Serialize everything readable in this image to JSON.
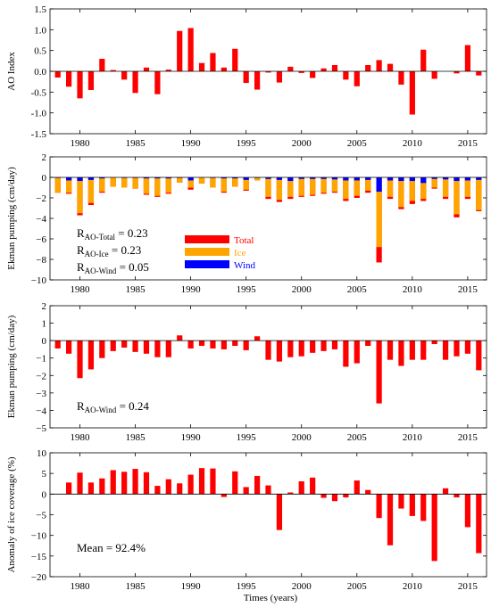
{
  "colors": {
    "total": "#ff0000",
    "ice": "#ffa500",
    "wind": "#0000ff"
  },
  "x_axis": {
    "label": "Times (years)",
    "ticks": [
      1980,
      1985,
      1990,
      1995,
      2000,
      2005,
      2010,
      2015
    ],
    "range": [
      1977.3,
      2016.7
    ]
  },
  "legend": {
    "total": "Total",
    "ice": "Ice",
    "wind": "Wind"
  },
  "annotations": {
    "r_total_main": "R",
    "r_total_sub": "AO-Total",
    "r_total_val": " = 0.23",
    "r_ice_main": "R",
    "r_ice_sub": "AO-Ice",
    "r_ice_val": " = 0.23",
    "r_wind_main": "R",
    "r_wind_sub": "AO-Wind",
    "r_wind_val": " = 0.05",
    "r_wind2_main": "R",
    "r_wind2_sub": "AO-Wind",
    "r_wind2_val": " = 0.24",
    "mean": "Mean = 92.4%"
  },
  "chart_data": [
    {
      "type": "bar",
      "ylabel": "AO Index",
      "ylim": [
        -1.5,
        1.5
      ],
      "yticks": [
        -1.5,
        -1.0,
        -0.5,
        0.0,
        0.5,
        1.0,
        1.5
      ],
      "ytick_labels": [
        "-1.5",
        "-1.0",
        "-0.5",
        "0.0",
        "0.5",
        "1.0",
        "1.5"
      ],
      "x": [
        1978,
        1979,
        1980,
        1981,
        1982,
        1983,
        1984,
        1985,
        1986,
        1987,
        1988,
        1989,
        1990,
        1991,
        1992,
        1993,
        1994,
        1995,
        1996,
        1997,
        1998,
        1999,
        2000,
        2001,
        2002,
        2003,
        2004,
        2005,
        2006,
        2007,
        2008,
        2009,
        2010,
        2011,
        2012,
        2013,
        2014,
        2015,
        2016
      ],
      "series": [
        {
          "color_key": "total",
          "values": [
            -0.15,
            -0.37,
            -0.65,
            -0.45,
            0.3,
            0.03,
            -0.2,
            -0.52,
            0.09,
            -0.55,
            0.04,
            0.97,
            1.04,
            0.2,
            0.44,
            0.09,
            0.54,
            -0.28,
            -0.44,
            -0.03,
            -0.27,
            0.11,
            -0.04,
            -0.16,
            0.07,
            0.15,
            -0.2,
            -0.36,
            0.15,
            0.27,
            0.18,
            -0.32,
            -1.04,
            0.52,
            -0.18,
            0.0,
            -0.05,
            0.63,
            -0.1
          ]
        }
      ]
    },
    {
      "type": "bar",
      "ylabel": "Ekman pumping (cm/day)",
      "ylim": [
        -10,
        2
      ],
      "yticks": [
        -10,
        -8,
        -6,
        -4,
        -2,
        0,
        2
      ],
      "ytick_labels": [
        "−10",
        "−8",
        "−6",
        "−4",
        "−2",
        "0",
        "2"
      ],
      "x": [
        1978,
        1979,
        1980,
        1981,
        1982,
        1983,
        1984,
        1985,
        1986,
        1987,
        1988,
        1989,
        1990,
        1991,
        1992,
        1993,
        1994,
        1995,
        1996,
        1997,
        1998,
        1999,
        2000,
        2001,
        2002,
        2003,
        2004,
        2005,
        2006,
        2007,
        2008,
        2009,
        2010,
        2011,
        2012,
        2013,
        2014,
        2015,
        2016
      ],
      "series": [
        {
          "color_key": "total",
          "values": [
            -1.5,
            -1.6,
            -3.7,
            -2.7,
            -1.5,
            -0.9,
            -1.0,
            -1.1,
            -1.7,
            -1.9,
            -1.6,
            -0.5,
            -1.2,
            -0.6,
            -1.0,
            -1.5,
            -0.9,
            -1.3,
            -0.3,
            -2.1,
            -2.4,
            -2.1,
            -1.9,
            -1.8,
            -1.6,
            -1.5,
            -2.3,
            -2.0,
            -1.5,
            -8.3,
            -2.1,
            -3.1,
            -2.6,
            -2.3,
            -1.1,
            -2.1,
            -3.9,
            -2.1,
            -3.3
          ]
        },
        {
          "color_key": "ice",
          "values": [
            -1.5,
            -1.5,
            -3.5,
            -2.5,
            -1.4,
            -0.9,
            -1.0,
            -1.1,
            -1.6,
            -1.8,
            -1.5,
            -0.5,
            -1.0,
            -0.6,
            -1.0,
            -1.4,
            -0.9,
            -1.2,
            -0.3,
            -1.9,
            -2.2,
            -1.9,
            -1.8,
            -1.7,
            -1.5,
            -1.4,
            -2.1,
            -1.8,
            -1.3,
            -6.8,
            -1.9,
            -2.9,
            -2.3,
            -2.1,
            -1.0,
            -1.9,
            -3.6,
            -1.9,
            -3.2
          ]
        },
        {
          "color_key": "wind",
          "values": [
            -0.05,
            -0.3,
            -0.35,
            -0.25,
            -0.1,
            0,
            -0.05,
            -0.05,
            -0.1,
            -0.1,
            -0.1,
            -0.05,
            -0.3,
            0,
            -0.05,
            -0.1,
            -0.1,
            -0.25,
            -0.05,
            -0.15,
            -0.25,
            -0.35,
            -0.15,
            -0.15,
            -0.15,
            -0.2,
            -0.3,
            -0.3,
            -0.25,
            -1.4,
            -0.3,
            -0.35,
            -0.35,
            -0.55,
            -0.15,
            -0.2,
            -0.35,
            -0.3,
            -0.25
          ]
        }
      ]
    },
    {
      "type": "bar",
      "ylabel": "Ekman pumping (cm/day)",
      "ylim": [
        -5,
        2
      ],
      "yticks": [
        -5,
        -4,
        -3,
        -2,
        -1,
        0,
        1,
        2
      ],
      "ytick_labels": [
        "−5",
        "−4",
        "−3",
        "−2",
        "−1",
        "0",
        "1",
        "2"
      ],
      "x": [
        1978,
        1979,
        1980,
        1981,
        1982,
        1983,
        1984,
        1985,
        1986,
        1987,
        1988,
        1989,
        1990,
        1991,
        1992,
        1993,
        1994,
        1995,
        1996,
        1997,
        1998,
        1999,
        2000,
        2001,
        2002,
        2003,
        2004,
        2005,
        2006,
        2007,
        2008,
        2009,
        2010,
        2011,
        2012,
        2013,
        2014,
        2015,
        2016
      ],
      "series": [
        {
          "color_key": "total",
          "values": [
            -0.45,
            -0.75,
            -2.15,
            -1.65,
            -1.0,
            -0.6,
            -0.4,
            -0.65,
            -0.75,
            -0.95,
            -0.95,
            0.3,
            -0.45,
            -0.3,
            -0.45,
            -0.5,
            -0.3,
            -0.55,
            0.25,
            -1.1,
            -1.2,
            -0.95,
            -0.9,
            -0.7,
            -0.6,
            -0.5,
            -1.5,
            -1.3,
            -0.3,
            -3.6,
            -1.1,
            -1.45,
            -1.1,
            -1.1,
            -0.2,
            -1.1,
            -0.9,
            -0.75,
            -1.7
          ]
        }
      ]
    },
    {
      "type": "bar",
      "ylabel": "Anomaly of ice coverage (%)",
      "ylim": [
        -20,
        10
      ],
      "yticks": [
        -20,
        -15,
        -10,
        -5,
        0,
        5,
        10
      ],
      "ytick_labels": [
        "−20",
        "−15",
        "−10",
        "−5",
        "0",
        "5",
        "10"
      ],
      "x": [
        1978,
        1979,
        1980,
        1981,
        1982,
        1983,
        1984,
        1985,
        1986,
        1987,
        1988,
        1989,
        1990,
        1991,
        1992,
        1993,
        1994,
        1995,
        1996,
        1997,
        1998,
        1999,
        2000,
        2001,
        2002,
        2003,
        2004,
        2005,
        2006,
        2007,
        2008,
        2009,
        2010,
        2011,
        2012,
        2013,
        2014,
        2015,
        2016
      ],
      "series": [
        {
          "color_key": "total",
          "values": [
            0,
            2.8,
            5.2,
            2.8,
            3.8,
            5.8,
            5.4,
            6.1,
            5.3,
            2.0,
            3.6,
            2.6,
            4.7,
            6.3,
            6.2,
            -0.7,
            5.5,
            1.7,
            4.4,
            2.1,
            -8.7,
            0.4,
            3.1,
            4.0,
            -0.9,
            -1.7,
            -0.8,
            3.3,
            1.0,
            -5.8,
            -12.4,
            -3.5,
            -5.3,
            -6.5,
            -16.2,
            1.4,
            -0.8,
            -8.0,
            -14.3
          ]
        }
      ]
    }
  ]
}
